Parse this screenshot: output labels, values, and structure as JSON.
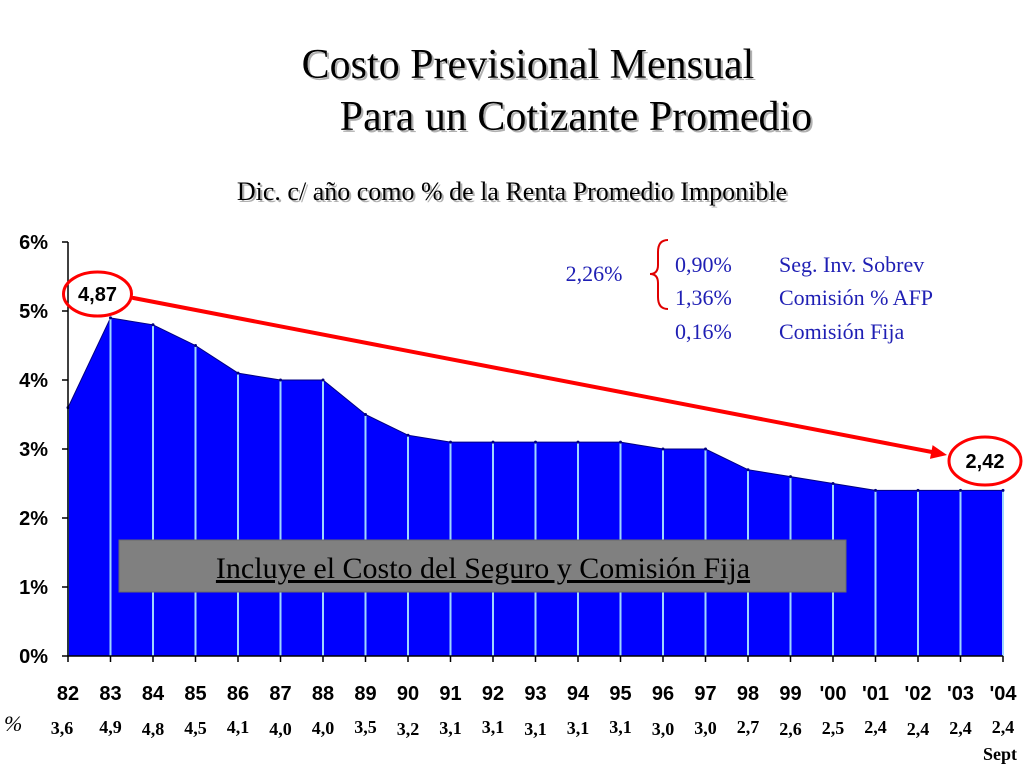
{
  "title_line1": "Costo Previsional Mensual",
  "title_line2": "Para un Cotizante Promedio",
  "subtitle": "Dic. c/ año como % de la Renta Promedio Imponible",
  "chart_data": {
    "type": "area",
    "categories": [
      "82",
      "83",
      "84",
      "85",
      "86",
      "87",
      "88",
      "89",
      "90",
      "91",
      "92",
      "93",
      "94",
      "95",
      "96",
      "97",
      "98",
      "99",
      "'00",
      "'01",
      "'02",
      "'03",
      "'04"
    ],
    "values": [
      3.6,
      4.9,
      4.8,
      4.5,
      4.1,
      4.0,
      4.0,
      3.5,
      3.2,
      3.1,
      3.1,
      3.1,
      3.1,
      3.1,
      3.0,
      3.0,
      2.7,
      2.6,
      2.5,
      2.4,
      2.4,
      2.4,
      2.4
    ],
    "value_labels": [
      "3,6",
      "4,9",
      "4,8",
      "4,5",
      "4,1",
      "4,0",
      "4,0",
      "3,5",
      "3,2",
      "3,1",
      "3,1",
      "3,1",
      "3,1",
      "3,1",
      "3,0",
      "3,0",
      "2,7",
      "2,6",
      "2,5",
      "2,4",
      "2,4",
      "2,4",
      "2,4"
    ],
    "ylim": [
      0,
      6
    ],
    "yticks": [
      "0%",
      "1%",
      "2%",
      "3%",
      "4%",
      "5%",
      "6%"
    ],
    "grid": false,
    "fill_color": "#0000ff",
    "percent_row_label": "%",
    "last_label_note": "Sept",
    "start_callout": "4,87",
    "end_callout": "2,42",
    "trend_color": "#ff0000",
    "annotation_text": "Incluye el Costo del Seguro y Comisión Fija",
    "breakdown": {
      "total": "2,26%",
      "items": [
        {
          "value": "0,90%",
          "label": "Seg. Inv. Sobrev"
        },
        {
          "value": "1,36%",
          "label": "Comisión % AFP"
        },
        {
          "value": "0,16%",
          "label": "Comisión Fija"
        }
      ]
    }
  }
}
